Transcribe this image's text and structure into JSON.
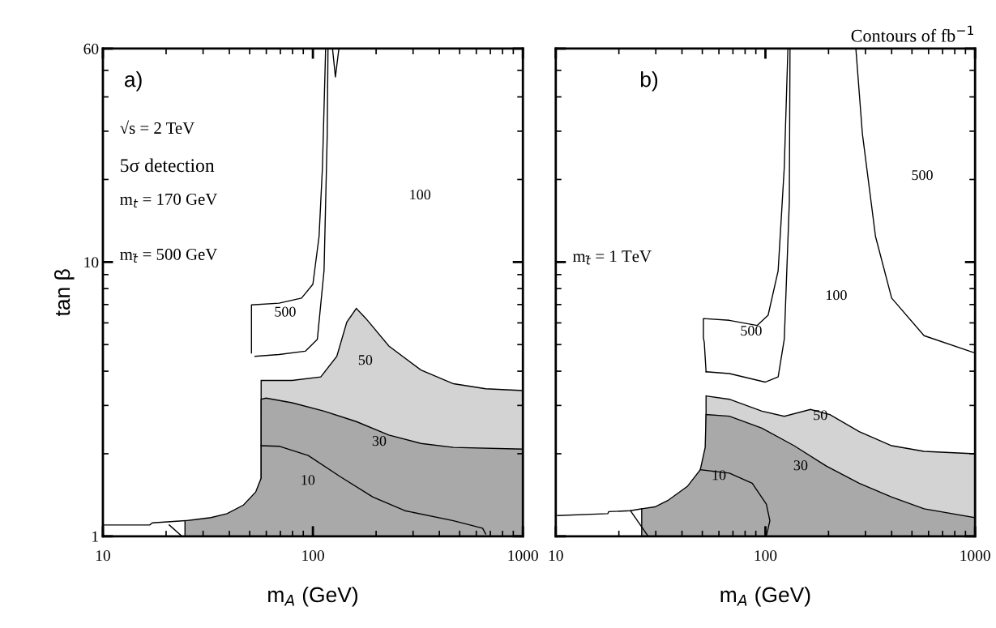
{
  "chart_data": [
    {
      "type": "area",
      "xlabel": "m$_{A}$ (GeV)",
      "ylabel": "tan β",
      "log": "xy",
      "xlim": [
        10,
        1000
      ],
      "ylim": [
        1,
        60
      ],
      "xticks": [
        10,
        100,
        1000
      ],
      "yticks": [
        1,
        10,
        60
      ],
      "grid": false,
      "annotations": [
        "a)",
        "√s = 2 TeV",
        "5σ detection",
        "m$_{t}$ = 170 GeV",
        "m$_{t̃}$ = 500 GeV",
        "500",
        "50",
        "100",
        "30",
        "10"
      ],
      "series": [
        {
          "color": "#d3d3d3",
          "x": [
            56.7,
            79.5,
            109,
            130,
            145,
            161,
            179,
            230,
            327,
            467,
            665,
            1000
          ],
          "values": [
            3.7,
            3.7,
            3.81,
            4.53,
            6.04,
            6.78,
            6.22,
            4.94,
            4.04,
            3.6,
            3.45,
            3.4
          ]
        },
        {
          "color": "#a9a9a9",
          "x": [
            24.6,
            27.4,
            32.7,
            39,
            46.7,
            53.4,
            56.7,
            56.7,
            59.8,
            79.5,
            113,
            161,
            230,
            327,
            467,
            1000
          ],
          "values": [
            1.14,
            1.15,
            1.17,
            1.21,
            1.3,
            1.45,
            1.63,
            3.16,
            3.19,
            3.07,
            2.86,
            2.62,
            2.34,
            2.18,
            2.11,
            2.08
          ]
        },
        {
          "type": "line",
          "color": "#000000",
          "x": [
            124,
            128,
            133
          ],
          "values": [
            60,
            47.3,
            60
          ]
        },
        {
          "type": "line",
          "color": "#000000",
          "x": [
            51,
            51,
            69,
            88.3,
            100,
            107,
            111,
            115
          ],
          "values": [
            4.66,
            6.98,
            7.08,
            7.39,
            8.3,
            12.4,
            22,
            60
          ]
        },
        {
          "type": "line",
          "color": "#000000",
          "x": [
            53,
            69,
            92,
            105,
            113,
            117,
            118
          ],
          "values": [
            4.53,
            4.6,
            4.73,
            5.23,
            9.3,
            29,
            60
          ]
        },
        {
          "type": "line",
          "color": "#000000",
          "x": [
            56.7,
            69,
            95,
            135,
            193,
            274,
            467,
            643,
            665
          ],
          "values": [
            2.14,
            2.13,
            1.97,
            1.65,
            1.39,
            1.24,
            1.14,
            1.07,
            1.02
          ]
        },
        {
          "type": "line",
          "color": "#000000",
          "x": [
            10,
            16.7,
            17.2,
            24.6
          ],
          "values": [
            1.1,
            1.1,
            1.12,
            1.14
          ]
        },
        {
          "type": "line",
          "color": "#000000",
          "x": [
            20.7,
            23.8
          ],
          "values": [
            1.1,
            1.0
          ]
        }
      ]
    },
    {
      "type": "area",
      "title": "Contours of fb$^{−1}$",
      "xlabel": "m$_{A}$ (GeV)",
      "log": "xy",
      "xlim": [
        10,
        1000
      ],
      "ylim": [
        1,
        60
      ],
      "xticks": [
        10,
        100,
        1000
      ],
      "yticks": [
        1,
        10,
        60
      ],
      "tick_labels": "x",
      "grid": false,
      "annotations": [
        "b)",
        "m$_{t̃}$ = 1 TeV",
        "500",
        "100",
        "500",
        "50",
        "30",
        "10"
      ],
      "series": [
        {
          "color": "#d3d3d3",
          "x": [
            52.1,
            67.3,
            96.2,
            123,
            164,
            203,
            280,
            400,
            571,
            1000
          ],
          "values": [
            3.25,
            3.16,
            2.86,
            2.74,
            2.9,
            2.78,
            2.41,
            2.14,
            2.04,
            2.0
          ]
        },
        {
          "color": "#a9a9a9",
          "x": [
            25.7,
            29.7,
            34.2,
            42.4,
            48.9,
            51.6,
            52.1,
            67.3,
            96.2,
            137,
            196,
            280,
            400,
            571,
            1000
          ],
          "values": [
            1.26,
            1.28,
            1.35,
            1.52,
            1.75,
            2.11,
            2.78,
            2.74,
            2.48,
            2.14,
            1.8,
            1.56,
            1.39,
            1.26,
            1.17
          ]
        },
        {
          "type": "line",
          "color": "#000000",
          "x": [
            52.1,
            51.1,
            50.6,
            50.6,
            67.3,
            91.2,
            103,
            115,
            123,
            128
          ],
          "values": [
            3.98,
            5.08,
            5.3,
            6.22,
            6.13,
            5.87,
            6.4,
            9.3,
            22.1,
            60
          ]
        },
        {
          "type": "line",
          "color": "#000000",
          "x": [
            52.1,
            67.3,
            99.6,
            115,
            123,
            130,
            131
          ],
          "values": [
            3.98,
            3.92,
            3.65,
            3.81,
            5.23,
            16.5,
            60
          ]
        },
        {
          "type": "line",
          "color": "#000000",
          "x": [
            270,
            290,
            335,
            400,
            571,
            1000
          ],
          "values": [
            60,
            29.4,
            12.4,
            7.39,
            5.39,
            4.66
          ]
        },
        {
          "type": "line",
          "color": "#000000",
          "x": [
            48.9,
            67.3,
            86.5,
            101,
            105,
            101
          ],
          "values": [
            1.75,
            1.7,
            1.56,
            1.31,
            1.14,
            1.0
          ]
        },
        {
          "type": "line",
          "color": "#000000",
          "x": [
            10.2,
            17.7,
            17.9,
            22.7,
            25.7
          ],
          "values": [
            1.19,
            1.21,
            1.23,
            1.24,
            1.26
          ]
        },
        {
          "type": "line",
          "color": "#000000",
          "x": [
            22.7,
            27.6
          ],
          "values": [
            1.24,
            1.0
          ]
        }
      ]
    }
  ]
}
